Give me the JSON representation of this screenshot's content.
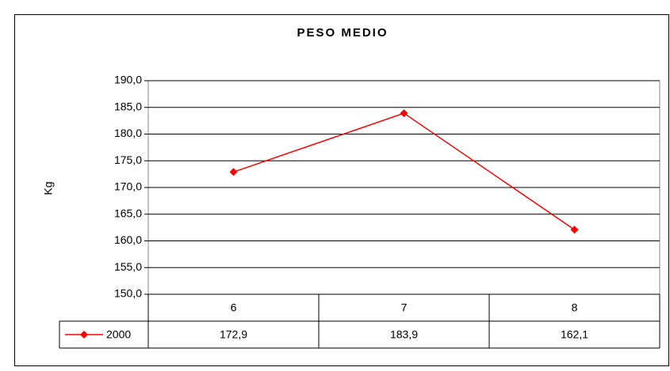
{
  "chart_data": {
    "type": "line",
    "title": "PESO MEDIO",
    "y_label": "Kg",
    "categories": [
      "6",
      "7",
      "8"
    ],
    "series": [
      {
        "name": "2000",
        "color": "#ff0000",
        "values": [
          172.9,
          183.9,
          162.1
        ],
        "value_labels": [
          "172,9",
          "183,9",
          "162,1"
        ]
      }
    ],
    "ylim": [
      150,
      190
    ],
    "yticks": [
      {
        "value": 150,
        "label": "150,0"
      },
      {
        "value": 155,
        "label": "155,0"
      },
      {
        "value": 160,
        "label": "160,0"
      },
      {
        "value": 165,
        "label": "165,0"
      },
      {
        "value": 170,
        "label": "170,0"
      },
      {
        "value": 175,
        "label": "175,0"
      },
      {
        "value": 180,
        "label": "180,0"
      },
      {
        "value": 185,
        "label": "185,0"
      },
      {
        "value": 190,
        "label": "190,0"
      }
    ],
    "grid": true
  }
}
